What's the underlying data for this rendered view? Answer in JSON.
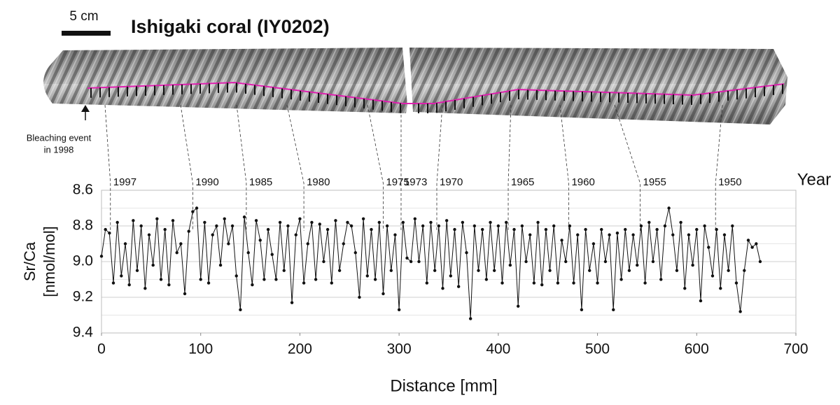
{
  "chart_data": {
    "type": "line",
    "title": "Ishigaki coral (IY0202)",
    "scale_bar_label": "5 cm",
    "annotation": [
      "Bleaching event",
      "in 1998"
    ],
    "year_axis_label": "Year",
    "y_label": [
      "Sr/Ca",
      "[nmol/mol]"
    ],
    "x_label": "Distance [mm]",
    "xlim": [
      0,
      700
    ],
    "xticks": [
      0,
      100,
      200,
      300,
      400,
      500,
      600,
      700
    ],
    "ylim": [
      9.4,
      8.6
    ],
    "yticks": [
      8.6,
      8.8,
      {
        "value": 9,
        "label": "9.0"
      },
      9.2,
      9.4
    ],
    "y_minor_ticks": [
      8.7,
      8.9,
      9.1,
      9.3
    ],
    "grid": true,
    "year_markers": [
      {
        "label": "1997",
        "x": 9
      },
      {
        "label": "1990",
        "x": 92
      },
      {
        "label": "1985",
        "x": 146
      },
      {
        "label": "1980",
        "x": 204
      },
      {
        "label": "1975",
        "x": 284
      },
      {
        "label": "1973",
        "x": 302
      },
      {
        "label": "1970",
        "x": 338
      },
      {
        "label": "1965",
        "x": 410
      },
      {
        "label": "1960",
        "x": 471
      },
      {
        "label": "1955",
        "x": 543
      },
      {
        "label": "1950",
        "x": 619
      }
    ],
    "series": [
      {
        "color": "#111111",
        "x": [
          0,
          4,
          8,
          12,
          16,
          20,
          24,
          28,
          32,
          36,
          40,
          44,
          48,
          52,
          56,
          60,
          64,
          68,
          72,
          76,
          80,
          84,
          88,
          92,
          96,
          100,
          104,
          108,
          112,
          116,
          120,
          124,
          128,
          132,
          136,
          140,
          144,
          148,
          152,
          156,
          160,
          164,
          168,
          172,
          176,
          180,
          184,
          188,
          192,
          196,
          200,
          204,
          208,
          212,
          216,
          220,
          224,
          228,
          232,
          236,
          240,
          244,
          248,
          252,
          256,
          260,
          264,
          268,
          272,
          276,
          280,
          284,
          288,
          292,
          296,
          300,
          304,
          308,
          312,
          316,
          320,
          324,
          328,
          332,
          336,
          340,
          344,
          348,
          352,
          356,
          360,
          364,
          368,
          372,
          376,
          380,
          384,
          388,
          392,
          396,
          400,
          404,
          408,
          412,
          416,
          420,
          424,
          428,
          432,
          436,
          440,
          444,
          448,
          452,
          456,
          460,
          464,
          468,
          472,
          476,
          480,
          484,
          488,
          492,
          496,
          500,
          504,
          508,
          512,
          516,
          520,
          524,
          528,
          532,
          536,
          540,
          544,
          548,
          552,
          556,
          560,
          564,
          568,
          572,
          576,
          580,
          584,
          588,
          592,
          596,
          600,
          604,
          608,
          612,
          616,
          620,
          624,
          628,
          632,
          636,
          640,
          644,
          648,
          652,
          656,
          660,
          664
        ],
        "values": [
          8.97,
          8.82,
          8.84,
          9.12,
          8.78,
          9.08,
          8.9,
          9.13,
          8.77,
          9.05,
          8.8,
          9.15,
          8.85,
          9.02,
          8.76,
          9.1,
          8.82,
          9.13,
          8.77,
          8.95,
          8.9,
          9.18,
          8.83,
          8.72,
          8.7,
          9.1,
          8.78,
          9.12,
          8.85,
          8.8,
          9.02,
          8.76,
          8.9,
          8.8,
          9.08,
          9.27,
          8.75,
          8.95,
          9.13,
          8.77,
          8.88,
          9.1,
          8.82,
          8.96,
          9.1,
          8.78,
          9.05,
          8.8,
          9.23,
          8.85,
          8.76,
          9.12,
          8.9,
          8.78,
          9.1,
          8.79,
          9.0,
          8.82,
          9.12,
          8.77,
          9.05,
          8.9,
          8.78,
          8.8,
          8.95,
          9.2,
          8.76,
          9.08,
          8.82,
          9.1,
          8.78,
          9.18,
          8.8,
          9.05,
          8.85,
          9.27,
          8.78,
          8.98,
          9.0,
          8.76,
          9.0,
          8.8,
          9.12,
          8.78,
          9.05,
          8.8,
          9.15,
          8.77,
          9.08,
          8.82,
          9.14,
          8.78,
          8.95,
          9.32,
          8.8,
          9.05,
          8.82,
          9.1,
          8.78,
          9.05,
          8.8,
          9.12,
          8.78,
          9.02,
          8.82,
          9.25,
          8.8,
          9.0,
          8.85,
          9.12,
          8.78,
          9.13,
          8.82,
          9.05,
          8.8,
          9.12,
          8.88,
          9.0,
          8.8,
          9.12,
          8.85,
          9.27,
          8.82,
          9.05,
          8.9,
          9.12,
          8.82,
          9.0,
          8.85,
          9.27,
          8.84,
          9.1,
          8.82,
          9.05,
          8.85,
          9.02,
          8.8,
          9.12,
          8.78,
          9.0,
          8.82,
          9.1,
          8.8,
          8.7,
          8.85,
          9.05,
          8.78,
          9.15,
          8.85,
          9.02,
          8.82,
          9.22,
          8.8,
          8.92,
          9.08,
          8.82,
          9.15,
          8.85,
          9.05,
          8.8,
          9.12,
          9.28,
          9.05,
          8.88,
          8.92,
          8.9,
          9.0
        ]
      }
    ]
  }
}
